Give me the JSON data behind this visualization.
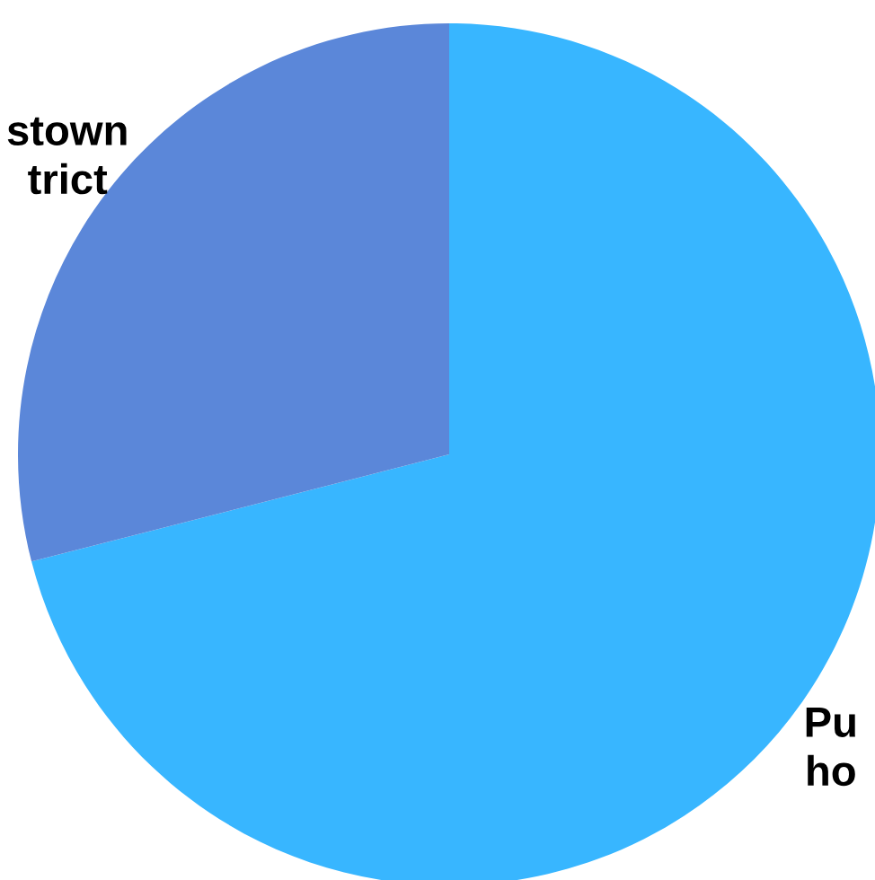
{
  "chart_data": {
    "type": "pie",
    "categories": [
      "Pu\nho",
      "stown\ntrict"
    ],
    "values": [
      71,
      29
    ],
    "colors": [
      "#38b6ff",
      "#5b87d9"
    ]
  }
}
